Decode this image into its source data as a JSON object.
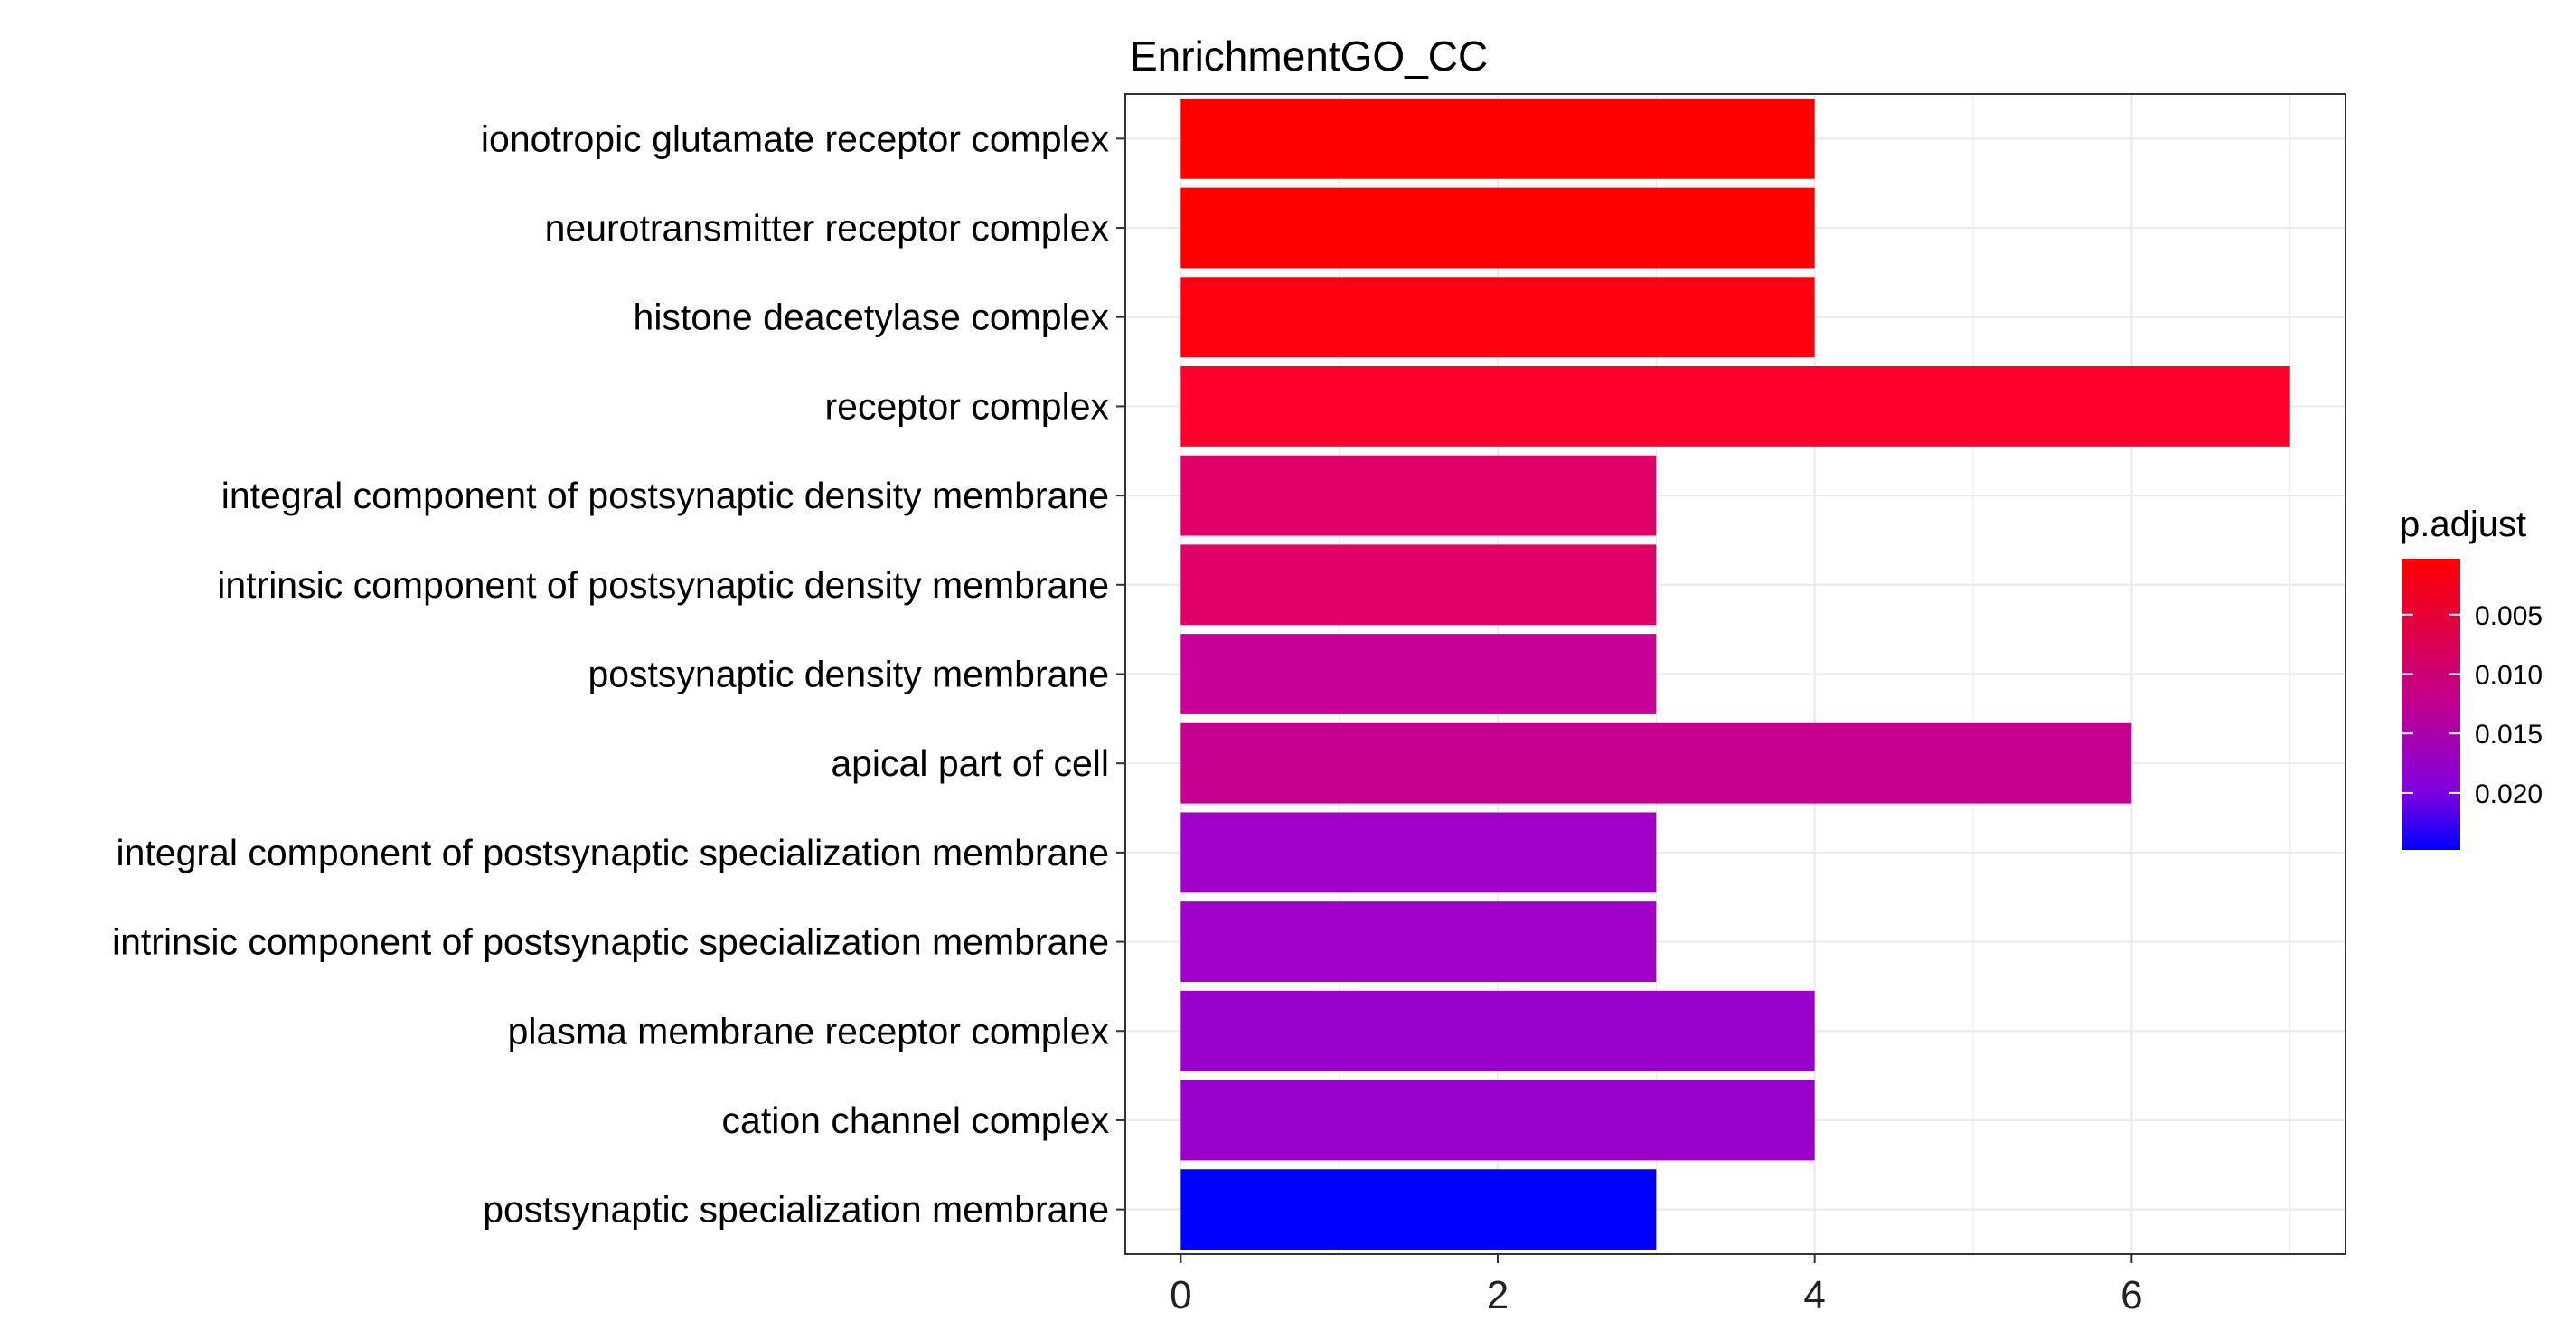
{
  "chart_data": {
    "type": "bar",
    "orientation": "horizontal",
    "title": "EnrichmentGO_CC",
    "xlabel": "",
    "ylabel": "",
    "xlim": [
      -0.35,
      7.35
    ],
    "xticks": [
      0,
      2,
      4,
      6
    ],
    "categories": [
      "ionotropic glutamate receptor complex",
      "neurotransmitter receptor complex",
      "histone deacetylase complex",
      "receptor complex",
      "integral component of postsynaptic density membrane",
      "intrinsic component of postsynaptic density membrane",
      "postsynaptic density membrane",
      "apical part of cell",
      "integral component of postsynaptic specialization membrane",
      "intrinsic component of postsynaptic specialization membrane",
      "plasma membrane receptor complex",
      "cation channel complex",
      "postsynaptic specialization membrane"
    ],
    "values": [
      4,
      4,
      4,
      7,
      3,
      3,
      3,
      6,
      3,
      3,
      4,
      4,
      3
    ],
    "p_adjust": [
      0.0003,
      0.0003,
      0.0005,
      0.0012,
      0.0078,
      0.0078,
      0.0108,
      0.011,
      0.0168,
      0.0168,
      0.017,
      0.0172,
      0.0248
    ],
    "bar_colors": [
      "#FF0000",
      "#FF0000",
      "#FF0010",
      "#FF002A",
      "#E00068",
      "#E00068",
      "#C80098",
      "#C60090",
      "#A000C8",
      "#A000C8",
      "#9A00CC",
      "#9A00CC",
      "#0000FF"
    ],
    "legend": {
      "title": "p.adjust",
      "position": "right",
      "range": [
        0.0003,
        0.0248
      ],
      "ticks": [
        0.005,
        0.01,
        0.015,
        0.02
      ],
      "tick_labels": [
        "0.005",
        "0.010",
        "0.015",
        "0.020"
      ],
      "color_low": "#FF0000",
      "color_high": "#0000FF"
    },
    "grid": true
  }
}
